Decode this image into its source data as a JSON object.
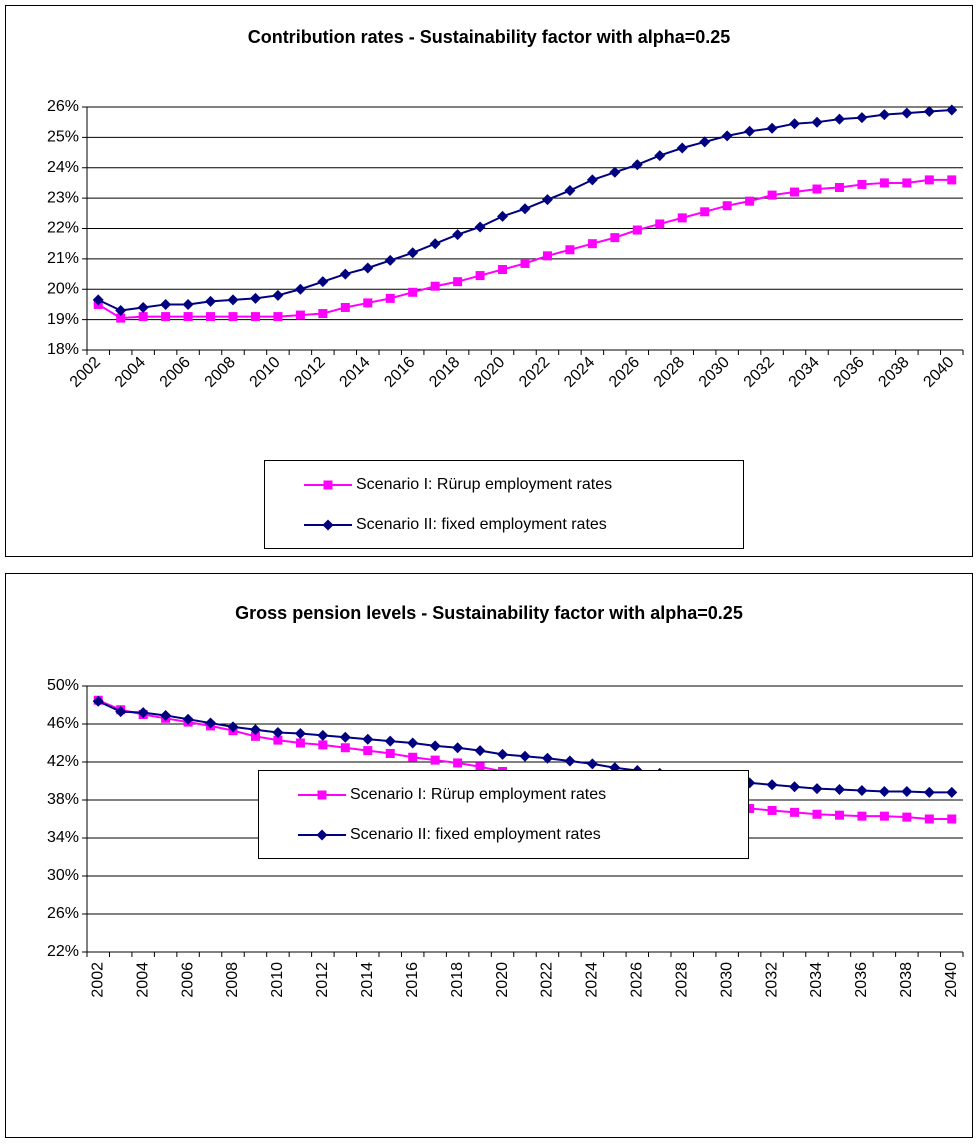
{
  "chart_data": [
    {
      "type": "line",
      "title": "Contribution rates - Sustainability factor with alpha=0.25",
      "categories": [
        "2002",
        null,
        "2004",
        null,
        "2006",
        null,
        "2008",
        null,
        "2010",
        null,
        "2012",
        null,
        "2014",
        null,
        "2016",
        null,
        "2018",
        null,
        "2020",
        null,
        "2022",
        null,
        "2024",
        null,
        "2026",
        null,
        "2028",
        null,
        "2030",
        null,
        "2032",
        null,
        "2034",
        null,
        "2036",
        null,
        "2038",
        null,
        "2040"
      ],
      "ylim": [
        18,
        26
      ],
      "yticks": [
        {
          "value": 18,
          "label": "18%"
        },
        {
          "value": 19,
          "label": "19%"
        },
        {
          "value": 20,
          "label": "20%"
        },
        {
          "value": 21,
          "label": "21%"
        },
        {
          "value": 22,
          "label": "22%"
        },
        {
          "value": 23,
          "label": "23%"
        },
        {
          "value": 24,
          "label": "24%"
        },
        {
          "value": 25,
          "label": "25%"
        },
        {
          "value": 26,
          "label": "26%"
        }
      ],
      "grid": true,
      "series": [
        {
          "name": "Scenario I: Rürup employment rates",
          "color": "#ff00ff",
          "marker": "square",
          "values": [
            19.5,
            19.05,
            19.1,
            19.1,
            19.1,
            19.1,
            19.1,
            19.1,
            19.1,
            19.15,
            19.2,
            19.4,
            19.55,
            19.7,
            19.9,
            20.1,
            20.25,
            20.45,
            20.65,
            20.85,
            21.1,
            21.3,
            21.5,
            21.7,
            21.95,
            22.15,
            22.35,
            22.55,
            22.75,
            22.9,
            23.1,
            23.2,
            23.3,
            23.35,
            23.45,
            23.5,
            23.5,
            23.6,
            23.6
          ]
        },
        {
          "name": "Scenario II: fixed employment rates",
          "color": "#000080",
          "marker": "diamond",
          "values": [
            19.65,
            19.3,
            19.4,
            19.5,
            19.5,
            19.6,
            19.65,
            19.7,
            19.8,
            20.0,
            20.25,
            20.5,
            20.7,
            20.95,
            21.2,
            21.5,
            21.8,
            22.05,
            22.4,
            22.65,
            22.95,
            23.25,
            23.6,
            23.85,
            24.1,
            24.4,
            24.65,
            24.85,
            25.05,
            25.2,
            25.3,
            25.45,
            25.5,
            25.6,
            25.65,
            25.75,
            25.8,
            25.85,
            25.9
          ]
        }
      ]
    },
    {
      "type": "line",
      "title": "Gross pension levels - Sustainability factor with alpha=0.25",
      "categories": [
        "2002",
        null,
        "2004",
        null,
        "2006",
        null,
        "2008",
        null,
        "2010",
        null,
        "2012",
        null,
        "2014",
        null,
        "2016",
        null,
        "2018",
        null,
        "2020",
        null,
        "2022",
        null,
        "2024",
        null,
        "2026",
        null,
        "2028",
        null,
        "2030",
        null,
        "2032",
        null,
        "2034",
        null,
        "2036",
        null,
        "2038",
        null,
        "2040"
      ],
      "ylim": [
        22,
        50
      ],
      "yticks": [
        {
          "value": 22,
          "label": "22%"
        },
        {
          "value": 26,
          "label": "26%"
        },
        {
          "value": 30,
          "label": "30%"
        },
        {
          "value": 34,
          "label": "34%"
        },
        {
          "value": 38,
          "label": "38%"
        },
        {
          "value": 42,
          "label": "42%"
        },
        {
          "value": 46,
          "label": "46%"
        },
        {
          "value": 50,
          "label": "50%"
        }
      ],
      "grid": true,
      "series": [
        {
          "name": "Scenario I: Rürup employment rates",
          "color": "#ff00ff",
          "marker": "square",
          "values": [
            48.5,
            47.5,
            47.0,
            46.6,
            46.2,
            45.8,
            45.3,
            44.7,
            44.3,
            44.0,
            43.8,
            43.5,
            43.2,
            42.9,
            42.5,
            42.2,
            41.9,
            41.5,
            41.0,
            40.6,
            40.2,
            39.8,
            39.5,
            39.1,
            38.6,
            38.2,
            37.9,
            37.5,
            37.3,
            37.1,
            36.9,
            36.7,
            36.5,
            36.4,
            36.3,
            36.3,
            36.2,
            36.0,
            36.0
          ]
        },
        {
          "name": "Scenario II: fixed employment rates",
          "color": "#000080",
          "marker": "diamond",
          "values": [
            48.4,
            47.3,
            47.2,
            46.9,
            46.5,
            46.1,
            45.7,
            45.4,
            45.1,
            45.0,
            44.8,
            44.6,
            44.4,
            44.2,
            44.0,
            43.7,
            43.5,
            43.2,
            42.8,
            42.6,
            42.4,
            42.1,
            41.8,
            41.4,
            41.1,
            40.8,
            40.5,
            40.2,
            40.0,
            39.8,
            39.6,
            39.4,
            39.2,
            39.1,
            39.0,
            38.9,
            38.9,
            38.8,
            38.8
          ]
        }
      ]
    }
  ]
}
